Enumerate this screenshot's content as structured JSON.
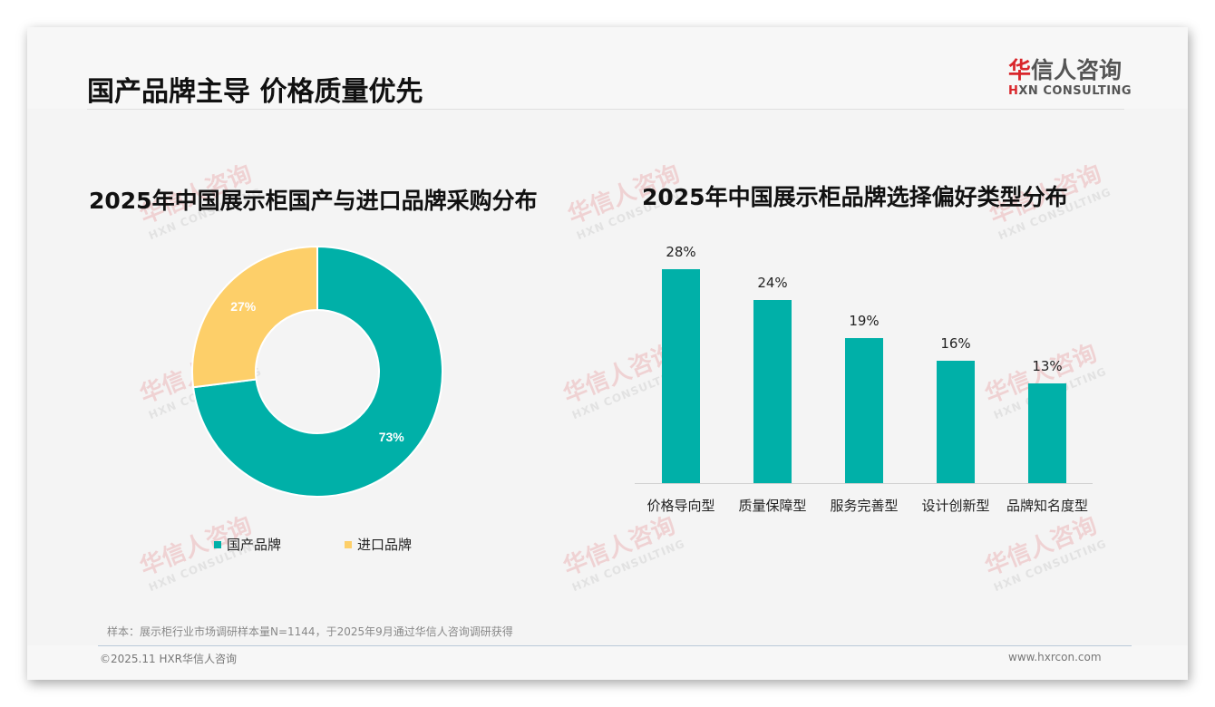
{
  "header": {
    "title": "国产品牌主导 价格质量优先",
    "logo_cn_first": "华",
    "logo_cn_rest": "信人咨询",
    "logo_en_first": "H",
    "logo_en_rest": "XN CONSULTING"
  },
  "watermark": {
    "cn": "华信人咨询",
    "en": "HXN CONSULTING"
  },
  "colors": {
    "teal": "#00b0a8",
    "yellow": "#fdcf69",
    "brand_red": "#d9262b"
  },
  "chart_data": [
    {
      "type": "pie",
      "variant": "donut",
      "title": "2025年中国展示柜国产与进口品牌采购分布",
      "categories": [
        "国产品牌",
        "进口品牌"
      ],
      "values": [
        73,
        27
      ],
      "labels": [
        "73%",
        "27%"
      ],
      "colors": [
        "#00b0a8",
        "#fdcf69"
      ],
      "legend_position": "bottom"
    },
    {
      "type": "bar",
      "title": "2025年中国展示柜品牌选择偏好类型分布",
      "categories": [
        "价格导向型",
        "质量保障型",
        "服务完善型",
        "设计创新型",
        "品牌知名度型"
      ],
      "values": [
        28,
        24,
        19,
        16,
        13
      ],
      "labels": [
        "28%",
        "24%",
        "19%",
        "16%",
        "13%"
      ],
      "color": "#00b0a8",
      "xlabel": "",
      "ylabel": "",
      "grid": false,
      "ylim": [
        0,
        30
      ]
    }
  ],
  "footer": {
    "sample_note": "样本：展示柜行业市场调研样本量N=1144，于2025年9月通过华信人咨询调研获得",
    "copyright": "©2025.11 HXR华信人咨询",
    "website": "www.hxrcon.com"
  }
}
